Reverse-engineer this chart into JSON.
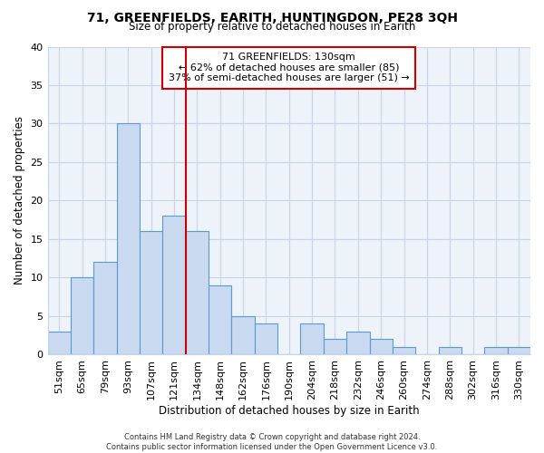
{
  "title": "71, GREENFIELDS, EARITH, HUNTINGDON, PE28 3QH",
  "subtitle": "Size of property relative to detached houses in Earith",
  "xlabel": "Distribution of detached houses by size in Earith",
  "ylabel": "Number of detached properties",
  "bar_labels": [
    "51sqm",
    "65sqm",
    "79sqm",
    "93sqm",
    "107sqm",
    "121sqm",
    "134sqm",
    "148sqm",
    "162sqm",
    "176sqm",
    "190sqm",
    "204sqm",
    "218sqm",
    "232sqm",
    "246sqm",
    "260sqm",
    "274sqm",
    "288sqm",
    "302sqm",
    "316sqm",
    "330sqm"
  ],
  "bar_heights": [
    3,
    10,
    12,
    30,
    16,
    18,
    16,
    9,
    5,
    4,
    0,
    4,
    2,
    3,
    2,
    1,
    0,
    1,
    0,
    1,
    1
  ],
  "bar_color": "#c9d9f0",
  "bar_edge_color": "#5b9bd5",
  "vline_x_index": 6,
  "vline_color": "#cc0000",
  "ylim": [
    0,
    40
  ],
  "yticks": [
    0,
    5,
    10,
    15,
    20,
    25,
    30,
    35,
    40
  ],
  "annotation_title": "71 GREENFIELDS: 130sqm",
  "annotation_line1": "← 62% of detached houses are smaller (85)",
  "annotation_line2": "37% of semi-detached houses are larger (51) →",
  "footer_line1": "Contains HM Land Registry data © Crown copyright and database right 2024.",
  "footer_line2": "Contains public sector information licensed under the Open Government Licence v3.0.",
  "background_color": "#ffffff",
  "grid_color": "#c8d4e8",
  "plot_bg_color": "#eef2f9"
}
